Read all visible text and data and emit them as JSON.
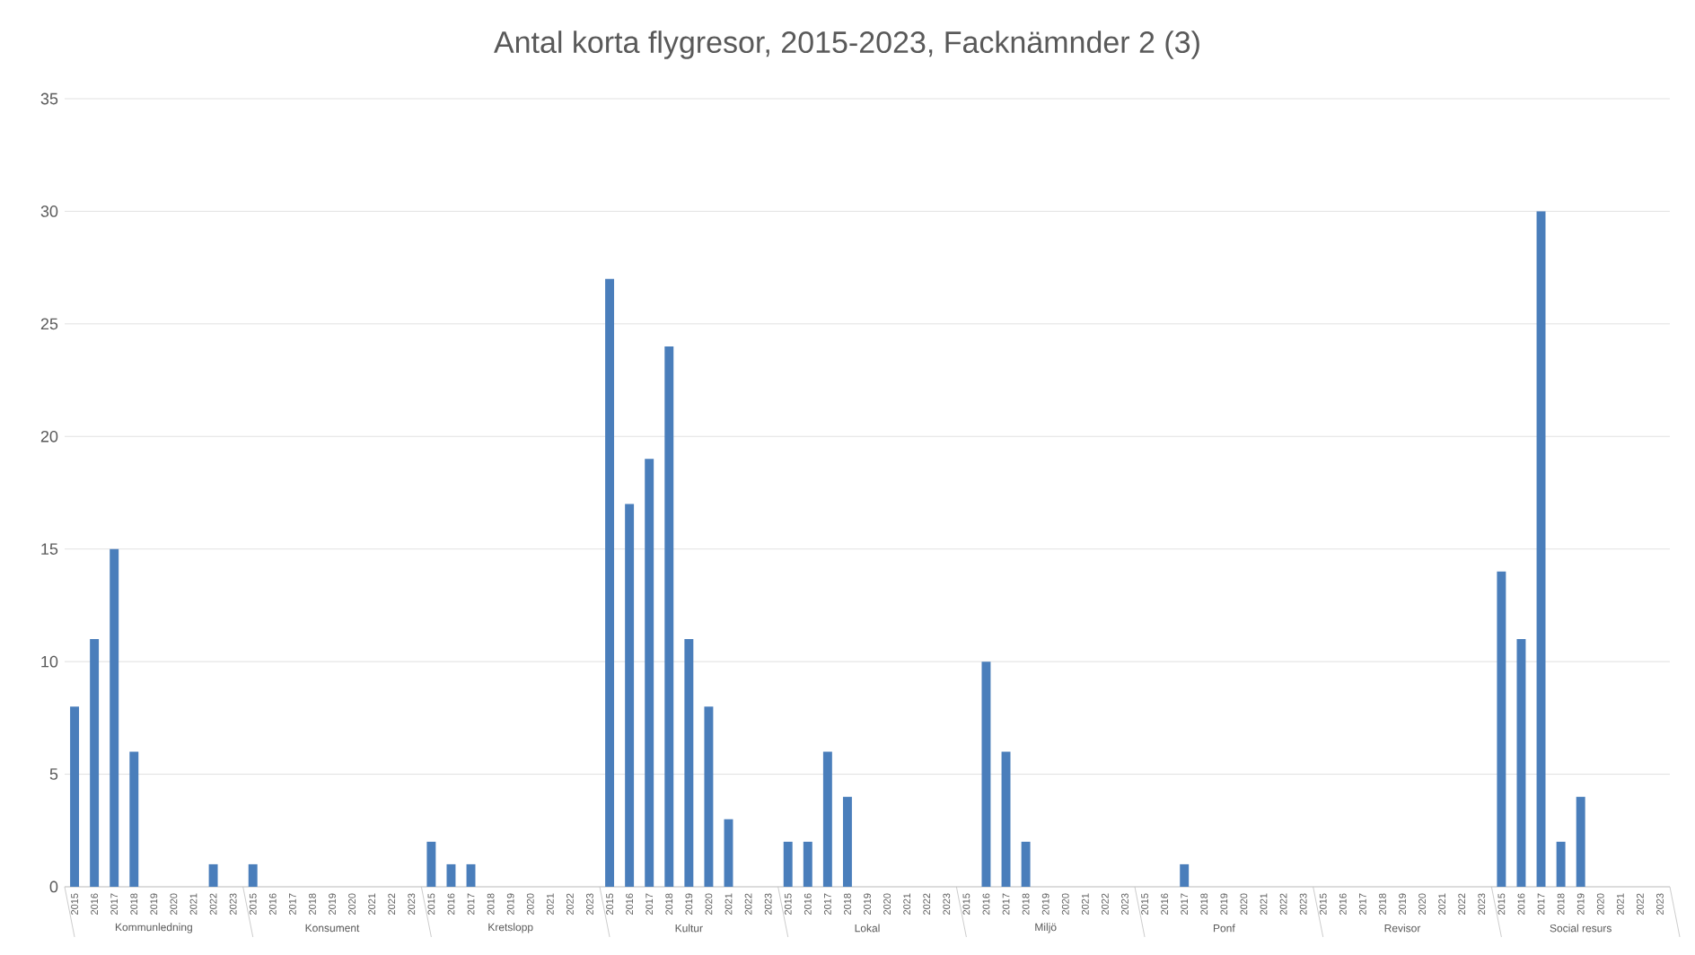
{
  "chart_data": {
    "type": "bar",
    "title": "Antal korta flygresor, 2015-2023, Facknämnder 2 (3)",
    "categories": [
      "2015",
      "2016",
      "2017",
      "2018",
      "2019",
      "2020",
      "2021",
      "2022",
      "2023",
      "2015",
      "2016",
      "2017",
      "2018",
      "2019",
      "2020",
      "2021",
      "2022",
      "2023",
      "2015",
      "2016",
      "2017",
      "2018",
      "2019",
      "2020",
      "2021",
      "2022",
      "2023",
      "2015",
      "2016",
      "2017",
      "2018",
      "2019",
      "2020",
      "2021",
      "2022",
      "2023",
      "2015",
      "2016",
      "2017",
      "2018",
      "2019",
      "2020",
      "2021",
      "2022",
      "2023",
      "2015",
      "2016",
      "2017",
      "2018",
      "2019",
      "2020",
      "2021",
      "2022",
      "2023",
      "2015",
      "2016",
      "2017",
      "2018",
      "2019",
      "2020",
      "2021",
      "2022",
      "2023",
      "2015",
      "2016",
      "2017",
      "2018",
      "2019",
      "2020",
      "2021",
      "2022",
      "2023",
      "2015",
      "2016",
      "2017",
      "2018",
      "2019",
      "2020",
      "2021",
      "2022",
      "2023"
    ],
    "values": [
      8,
      11,
      15,
      6,
      0,
      0,
      0,
      1,
      0,
      1,
      0,
      0,
      0,
      0,
      0,
      0,
      0,
      0,
      2,
      1,
      1,
      0,
      0,
      0,
      0,
      0,
      0,
      27,
      17,
      19,
      24,
      11,
      8,
      3,
      0,
      0,
      2,
      2,
      6,
      4,
      0,
      0,
      0,
      0,
      0,
      0,
      10,
      6,
      2,
      0,
      0,
      0,
      0,
      0,
      0,
      0,
      1,
      0,
      0,
      0,
      0,
      0,
      0,
      0,
      0,
      0,
      0,
      0,
      0,
      0,
      0,
      0,
      14,
      11,
      30,
      2,
      4,
      0,
      0,
      0,
      0
    ],
    "color": "#4a7ebb",
    "ylim": [
      0,
      35
    ],
    "yticks": [
      0,
      5,
      10,
      15,
      20,
      25,
      30,
      35
    ],
    "grid": "y",
    "annotations": [
      "Kommunledning",
      "Konsument",
      "Kretslopp",
      "Kultur",
      "Lokal",
      "Miljö",
      "Ponf",
      "Revisor",
      "Social resurs"
    ]
  }
}
